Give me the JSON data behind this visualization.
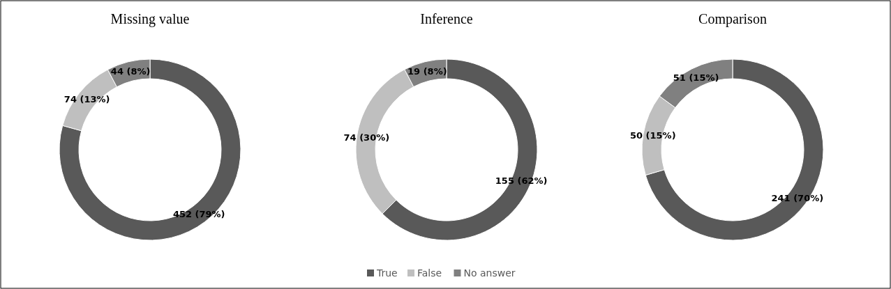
{
  "chart_data": [
    {
      "type": "donut",
      "title": "Missing value",
      "categories": [
        "True",
        "False",
        "No answer"
      ],
      "values": [
        452,
        74,
        44
      ],
      "colors": [
        "#595959",
        "#bfbfbf",
        "#808080"
      ],
      "value_labels": [
        "452 (79%)",
        "74 (13%)",
        "44 (8%)"
      ],
      "legend": "bottom"
    },
    {
      "type": "donut",
      "title": "Inference",
      "categories": [
        null,
        null,
        null
      ],
      "values": [
        155,
        74,
        19
      ],
      "colors": [
        "#595959",
        "#bfbfbf",
        "#808080"
      ],
      "value_labels": [
        "155 (62%)",
        "74 (30%)",
        "19 (8%)"
      ]
    },
    {
      "type": "donut",
      "title": "Comparison",
      "categories": [
        null,
        null,
        null
      ],
      "values": [
        241,
        50,
        51
      ],
      "colors": [
        "#595959",
        "#bfbfbf",
        "#808080"
      ],
      "value_labels": [
        "241 (70%)",
        "50 (15%)",
        "51 (15%)"
      ]
    }
  ]
}
